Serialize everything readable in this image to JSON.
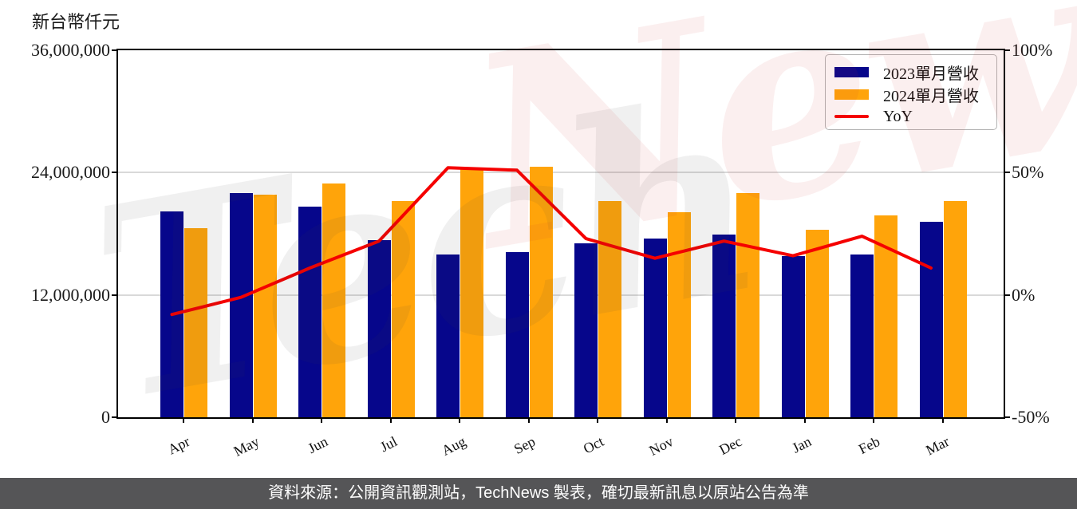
{
  "y_axis_title": "新台幣仟元",
  "watermark": {
    "part1": "Tech",
    "part2": "News"
  },
  "legend": {
    "items": [
      {
        "label": "2023單月營收",
        "color": "#06068b",
        "swatch": "box"
      },
      {
        "label": "2024單月營收",
        "color": "#ffa40a",
        "swatch": "box"
      },
      {
        "label": "YoY",
        "color": "#f50000",
        "swatch": "line"
      }
    ]
  },
  "footer": {
    "text": "資料來源：公開資訊觀測站，TechNews 製表，確切最新訊息以原站公告為準"
  },
  "chart_data": {
    "type": "bar",
    "categories": [
      "Apr",
      "May",
      "Jun",
      "Jul",
      "Aug",
      "Sep",
      "Oct",
      "Nov",
      "Dec",
      "Jan",
      "Feb",
      "Mar"
    ],
    "series": [
      {
        "name": "2023單月營收",
        "type": "bar",
        "axis": "left",
        "color": "#06068b",
        "values": [
          20200000,
          22000000,
          20700000,
          17400000,
          16000000,
          16200000,
          17100000,
          17500000,
          17900000,
          15800000,
          16000000,
          19200000
        ]
      },
      {
        "name": "2024單月營收",
        "type": "bar",
        "axis": "left",
        "color": "#ffa40a",
        "values": [
          18550000,
          21800000,
          22950000,
          21200000,
          24500000,
          24600000,
          21200000,
          20100000,
          22000000,
          18400000,
          19800000,
          21200000
        ]
      },
      {
        "name": "YoY",
        "type": "line",
        "axis": "right",
        "color": "#f50000",
        "values_pct": [
          -8,
          -1,
          11,
          22,
          52,
          51,
          23,
          15,
          22,
          16,
          24,
          11
        ]
      }
    ],
    "left_axis": {
      "label": "新台幣仟元",
      "tick_values": [
        36000000,
        24000000,
        12000000,
        0
      ],
      "tick_labels": [
        "36,000,000",
        "24,000,000",
        "12,000,000",
        "0"
      ],
      "min": 0,
      "max": 36000000
    },
    "right_axis": {
      "tick_labels": [
        "100%",
        "50%",
        "0%",
        "-50%"
      ],
      "tick_values": [
        100,
        50,
        0,
        -50
      ],
      "min": -50,
      "max": 100
    },
    "grid": {
      "horizontal_at_left_values": [
        24000000,
        12000000
      ],
      "color": "#d9d9d9"
    },
    "legend_position": "upper-right",
    "title": "",
    "xlabel": "",
    "ylabel": "新台幣仟元"
  }
}
